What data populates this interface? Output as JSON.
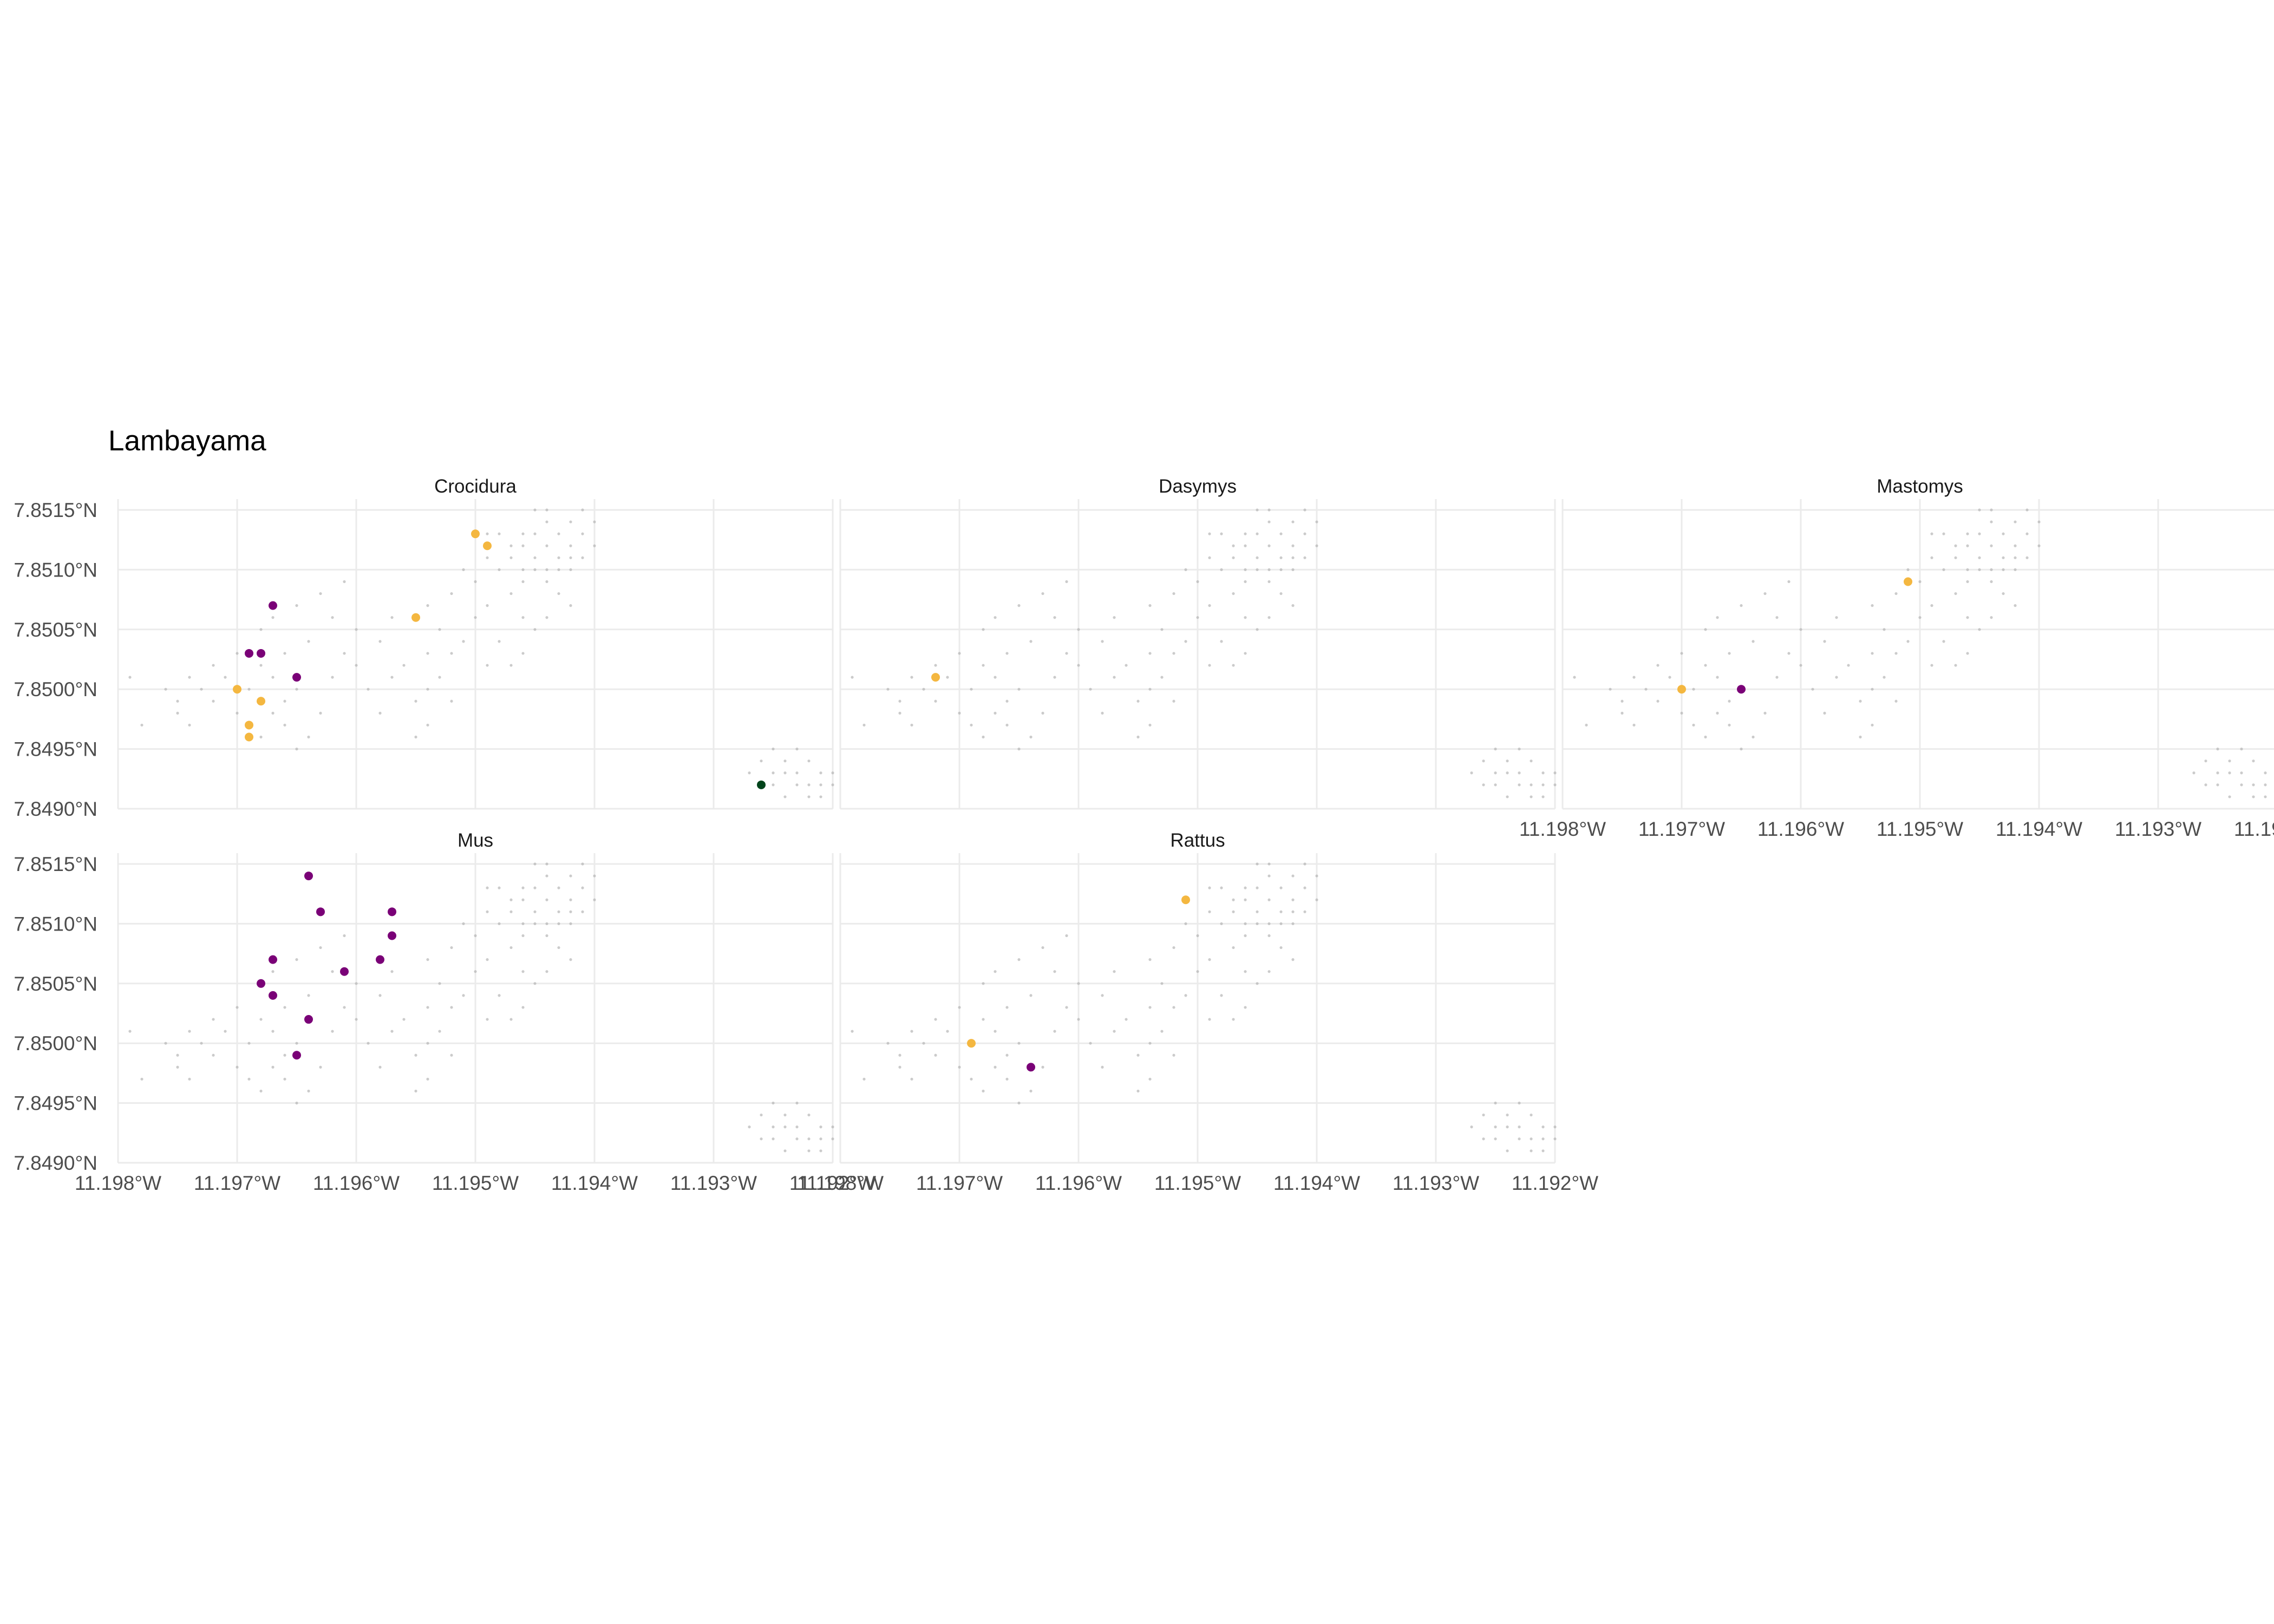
{
  "chart_data": {
    "type": "scatter",
    "title": "Lambayama",
    "xlabel": "",
    "ylabel": "",
    "grid": true,
    "legend": "none",
    "xlim": [
      -11.198,
      -11.192
    ],
    "ylim": [
      7.849,
      7.8515
    ],
    "x_ticks": [
      -11.198,
      -11.197,
      -11.196,
      -11.195,
      -11.194,
      -11.193,
      -11.192
    ],
    "x_tick_labels": [
      "11.198°W",
      "11.197°W",
      "11.196°W",
      "11.195°W",
      "11.194°W",
      "11.193°W",
      "11.192°W"
    ],
    "y_ticks": [
      7.849,
      7.8495,
      7.85,
      7.8505,
      7.851,
      7.8515
    ],
    "y_tick_labels": [
      "7.8490°N",
      "7.8495°N",
      "7.8500°N",
      "7.8505°N",
      "7.8510°N",
      "7.8515°N"
    ],
    "colors": {
      "purple": "#7a0177",
      "orange": "#f4b740",
      "darkgreen": "#00441b",
      "background_points": "#b5b5b5"
    },
    "background_points": [
      [
        -11.1976,
        7.85
      ],
      [
        -11.1975,
        7.8499
      ],
      [
        -11.1974,
        7.8501
      ],
      [
        -11.1973,
        7.85
      ],
      [
        -11.1972,
        7.8499
      ],
      [
        -11.1971,
        7.8501
      ],
      [
        -11.197,
        7.8498
      ],
      [
        -11.1969,
        7.8497
      ],
      [
        -11.1968,
        7.8496
      ],
      [
        -11.1967,
        7.8498
      ],
      [
        -11.1966,
        7.8497
      ],
      [
        -11.1965,
        7.8495
      ],
      [
        -11.1969,
        7.85
      ],
      [
        -11.1968,
        7.8502
      ],
      [
        -11.1967,
        7.8501
      ],
      [
        -11.1966,
        7.8499
      ],
      [
        -11.1975,
        7.8498
      ],
      [
        -11.1974,
        7.8497
      ],
      [
        -11.1972,
        7.8502
      ],
      [
        -11.197,
        7.8503
      ],
      [
        -11.1964,
        7.8496
      ],
      [
        -11.1963,
        7.8498
      ],
      [
        -11.1965,
        7.85
      ],
      [
        -11.1962,
        7.8501
      ],
      [
        -11.1961,
        7.8503
      ],
      [
        -11.196,
        7.8502
      ],
      [
        -11.1959,
        7.85
      ],
      [
        -11.196,
        7.8505
      ],
      [
        -11.1962,
        7.8506
      ],
      [
        -11.1964,
        7.8504
      ],
      [
        -11.1966,
        7.8503
      ],
      [
        -11.1968,
        7.8505
      ],
      [
        -11.1958,
        7.8504
      ],
      [
        -11.1957,
        7.8501
      ],
      [
        -11.1963,
        7.8508
      ],
      [
        -11.1965,
        7.8507
      ],
      [
        -11.1961,
        7.8509
      ],
      [
        -11.1967,
        7.8506
      ],
      [
        -11.1979,
        7.8501
      ],
      [
        -11.1978,
        7.8497
      ],
      [
        -11.1955,
        7.8499
      ],
      [
        -11.1954,
        7.85
      ],
      [
        -11.1953,
        7.8501
      ],
      [
        -11.1952,
        7.8503
      ],
      [
        -11.1951,
        7.8504
      ],
      [
        -11.195,
        7.8506
      ],
      [
        -11.1953,
        7.8505
      ],
      [
        -11.1954,
        7.8503
      ],
      [
        -11.1956,
        7.8502
      ],
      [
        -11.1952,
        7.8499
      ],
      [
        -11.1955,
        7.8496
      ],
      [
        -11.1954,
        7.8497
      ],
      [
        -11.1958,
        7.8498
      ],
      [
        -11.1949,
        7.8502
      ],
      [
        -11.1948,
        7.8504
      ],
      [
        -11.1949,
        7.8507
      ],
      [
        -11.1947,
        7.8508
      ],
      [
        -11.1946,
        7.8506
      ],
      [
        -11.1945,
        7.8505
      ],
      [
        -11.1944,
        7.8506
      ],
      [
        -11.1943,
        7.8508
      ],
      [
        -11.1942,
        7.8507
      ],
      [
        -11.1946,
        7.8509
      ],
      [
        -11.1948,
        7.851
      ],
      [
        -11.195,
        7.8509
      ],
      [
        -11.1952,
        7.8508
      ],
      [
        -11.1954,
        7.8507
      ],
      [
        -11.1957,
        7.8506
      ],
      [
        -11.1944,
        7.851
      ],
      [
        -11.1942,
        7.8511
      ],
      [
        -11.1946,
        7.8503
      ],
      [
        -11.1947,
        7.8502
      ],
      [
        -11.1951,
        7.851
      ],
      [
        -11.1949,
        7.8511
      ],
      [
        -11.194,
        7.8512
      ],
      [
        -11.1947,
        7.8511
      ],
      [
        -11.1946,
        7.8512
      ],
      [
        -11.1945,
        7.8511
      ],
      [
        -11.1944,
        7.8512
      ],
      [
        -11.1943,
        7.8513
      ],
      [
        -11.1942,
        7.8512
      ],
      [
        -11.1941,
        7.8513
      ],
      [
        -11.1946,
        7.851
      ],
      [
        -11.1945,
        7.8513
      ],
      [
        -11.1944,
        7.8514
      ],
      [
        -11.1943,
        7.8511
      ],
      [
        -11.1942,
        7.8514
      ],
      [
        -11.1941,
        7.8515
      ],
      [
        -11.1945,
        7.851
      ],
      [
        -11.1944,
        7.8509
      ],
      [
        -11.1947,
        7.8512
      ],
      [
        -11.1946,
        7.8513
      ],
      [
        -11.1943,
        7.851
      ],
      [
        -11.1948,
        7.8513
      ],
      [
        -11.1941,
        7.8511
      ],
      [
        -11.1949,
        7.8513
      ],
      [
        -11.194,
        7.8514
      ],
      [
        -11.1945,
        7.8515
      ],
      [
        -11.1942,
        7.851
      ],
      [
        -11.1944,
        7.8515
      ],
      [
        -11.1926,
        7.8494
      ],
      [
        -11.1925,
        7.8493
      ],
      [
        -11.1924,
        7.8494
      ],
      [
        -11.1923,
        7.8493
      ],
      [
        -11.1922,
        7.8492
      ],
      [
        -11.1921,
        7.8493
      ],
      [
        -11.1925,
        7.8492
      ],
      [
        -11.1924,
        7.8491
      ],
      [
        -11.1923,
        7.8492
      ],
      [
        -11.1922,
        7.8494
      ],
      [
        -11.1921,
        7.8492
      ],
      [
        -11.192,
        7.8493
      ],
      [
        -11.1926,
        7.8492
      ],
      [
        -11.1923,
        7.8495
      ],
      [
        -11.1921,
        7.8491
      ],
      [
        -11.1927,
        7.8493
      ],
      [
        -11.1925,
        7.8495
      ],
      [
        -11.192,
        7.8492
      ],
      [
        -11.1924,
        7.8493
      ],
      [
        -11.1922,
        7.8491
      ]
    ],
    "panels": [
      {
        "name": "Crocidura",
        "points": [
          {
            "x": -11.1967,
            "y": 7.8507,
            "color": "purple"
          },
          {
            "x": -11.1969,
            "y": 7.8503,
            "color": "purple"
          },
          {
            "x": -11.1968,
            "y": 7.8503,
            "color": "purple"
          },
          {
            "x": -11.1965,
            "y": 7.8501,
            "color": "purple"
          },
          {
            "x": -11.197,
            "y": 7.85,
            "color": "orange"
          },
          {
            "x": -11.1968,
            "y": 7.8499,
            "color": "orange"
          },
          {
            "x": -11.1969,
            "y": 7.8497,
            "color": "orange"
          },
          {
            "x": -11.1969,
            "y": 7.8496,
            "color": "orange"
          },
          {
            "x": -11.1955,
            "y": 7.8506,
            "color": "orange"
          },
          {
            "x": -11.195,
            "y": 7.8513,
            "color": "orange"
          },
          {
            "x": -11.1949,
            "y": 7.8512,
            "color": "orange"
          },
          {
            "x": -11.1926,
            "y": 7.8492,
            "color": "darkgreen"
          }
        ]
      },
      {
        "name": "Dasymys",
        "points": [
          {
            "x": -11.1972,
            "y": 7.8501,
            "color": "orange"
          }
        ]
      },
      {
        "name": "Mastomys",
        "points": [
          {
            "x": -11.197,
            "y": 7.85,
            "color": "orange"
          },
          {
            "x": -11.1965,
            "y": 7.85,
            "color": "purple"
          },
          {
            "x": -11.1951,
            "y": 7.8509,
            "color": "orange"
          }
        ]
      },
      {
        "name": "Mus",
        "points": [
          {
            "x": -11.1964,
            "y": 7.8514,
            "color": "purple"
          },
          {
            "x": -11.1963,
            "y": 7.8511,
            "color": "purple"
          },
          {
            "x": -11.1957,
            "y": 7.8511,
            "color": "purple"
          },
          {
            "x": -11.1957,
            "y": 7.8509,
            "color": "purple"
          },
          {
            "x": -11.1958,
            "y": 7.8507,
            "color": "purple"
          },
          {
            "x": -11.1961,
            "y": 7.8506,
            "color": "purple"
          },
          {
            "x": -11.1967,
            "y": 7.8507,
            "color": "purple"
          },
          {
            "x": -11.1968,
            "y": 7.8505,
            "color": "purple"
          },
          {
            "x": -11.1967,
            "y": 7.8504,
            "color": "purple"
          },
          {
            "x": -11.1964,
            "y": 7.8502,
            "color": "purple"
          },
          {
            "x": -11.1965,
            "y": 7.8499,
            "color": "purple"
          }
        ]
      },
      {
        "name": "Rattus",
        "points": [
          {
            "x": -11.1969,
            "y": 7.85,
            "color": "orange"
          },
          {
            "x": -11.1964,
            "y": 7.8498,
            "color": "purple"
          },
          {
            "x": -11.1951,
            "y": 7.8512,
            "color": "orange"
          }
        ]
      }
    ]
  }
}
